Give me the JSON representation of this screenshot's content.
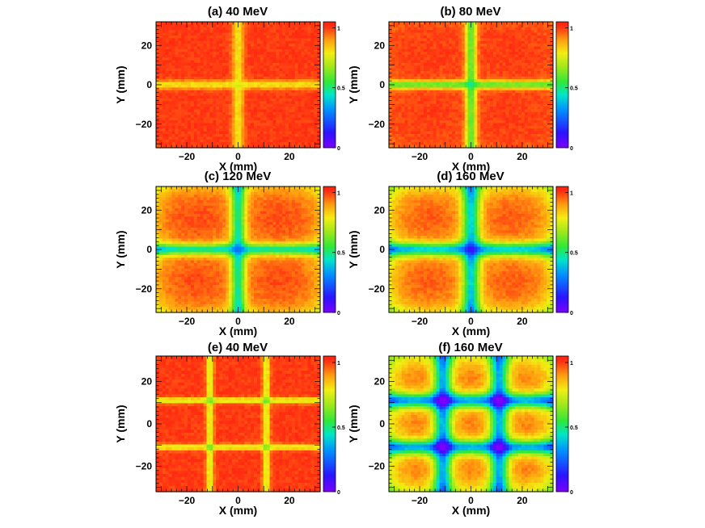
{
  "figure": {
    "colorbar": {
      "min": 0,
      "max": 1.05,
      "tick_labels": [
        "0",
        "0.5",
        "1"
      ],
      "tick_values": [
        0,
        0.5,
        1
      ],
      "palette": "rainbow (purple-blue-cyan-green-yellow-orange-red)"
    }
  },
  "chart_data": [
    {
      "type": "heatmap",
      "title": "(a) 40 MeV",
      "xlabel": "X (mm)",
      "ylabel": "Y (mm)",
      "xlim": [
        -32,
        32
      ],
      "ylim": [
        -32,
        32
      ],
      "xticks": [
        "−20",
        "0",
        "20"
      ],
      "yticks": [
        "−20",
        "0",
        "20"
      ],
      "xtick_values": [
        -20,
        0,
        20
      ],
      "ytick_values": [
        -20,
        0,
        20
      ],
      "zlim": [
        0,
        1.05
      ],
      "gap_positions_mm": [
        0
      ],
      "gap_width_mm": 2.2,
      "gap_min_value": 0.8,
      "center_value": 0.75,
      "block_value": 1.0,
      "edge_falloff": 0.0
    },
    {
      "type": "heatmap",
      "title": "(b) 80 MeV",
      "xlabel": "X (mm)",
      "ylabel": "Y (mm)",
      "xlim": [
        -32,
        32
      ],
      "ylim": [
        -32,
        32
      ],
      "xticks": [
        "−20",
        "0",
        "20"
      ],
      "yticks": [
        "−20",
        "0",
        "20"
      ],
      "xtick_values": [
        -20,
        0,
        20
      ],
      "ytick_values": [
        -20,
        0,
        20
      ],
      "zlim": [
        0,
        1.05
      ],
      "gap_positions_mm": [
        0
      ],
      "gap_width_mm": 2.0,
      "gap_min_value": 0.62,
      "center_value": 0.52,
      "block_value": 1.0,
      "edge_falloff": 0.05
    },
    {
      "type": "heatmap",
      "title": "(c) 120 MeV",
      "xlabel": "X (mm)",
      "ylabel": "Y (mm)",
      "xlim": [
        -32,
        32
      ],
      "ylim": [
        -32,
        32
      ],
      "xticks": [
        "−20",
        "0",
        "20"
      ],
      "yticks": [
        "−20",
        "0",
        "20"
      ],
      "xtick_values": [
        -20,
        0,
        20
      ],
      "ytick_values": [
        -20,
        0,
        20
      ],
      "zlim": [
        0,
        1.05
      ],
      "gap_positions_mm": [
        0
      ],
      "gap_width_mm": 2.8,
      "gap_min_value": 0.6,
      "center_value": 0.48,
      "block_value": 0.99,
      "edge_falloff": 0.22
    },
    {
      "type": "heatmap",
      "title": "(d) 160 MeV",
      "xlabel": "X (mm)",
      "ylabel": "Y (mm)",
      "xlim": [
        -32,
        32
      ],
      "ylim": [
        -32,
        32
      ],
      "xticks": [
        "−20",
        "0",
        "20"
      ],
      "yticks": [
        "−20",
        "0",
        "20"
      ],
      "xtick_values": [
        -20,
        0,
        20
      ],
      "ytick_values": [
        -20,
        0,
        20
      ],
      "zlim": [
        0,
        1.05
      ],
      "gap_positions_mm": [
        0
      ],
      "gap_width_mm": 3.4,
      "gap_min_value": 0.58,
      "center_value": 0.42,
      "block_value": 0.98,
      "edge_falloff": 0.3
    },
    {
      "type": "heatmap",
      "title": "(e) 40 MeV",
      "xlabel": "X (mm)",
      "ylabel": "Y (mm)",
      "xlim": [
        -32,
        32
      ],
      "ylim": [
        -32,
        32
      ],
      "xticks": [
        "−20",
        "0",
        "20"
      ],
      "yticks": [
        "−20",
        "0",
        "20"
      ],
      "xtick_values": [
        -20,
        0,
        20
      ],
      "ytick_values": [
        -20,
        0,
        20
      ],
      "zlim": [
        0,
        1.05
      ],
      "gap_positions_mm": [
        -11,
        11
      ],
      "gap_width_mm": 1.4,
      "gap_min_value": 0.75,
      "center_value": 0.58,
      "block_value": 1.0,
      "edge_falloff": 0.0
    },
    {
      "type": "heatmap",
      "title": "(f) 160 MeV",
      "xlabel": "X (mm)",
      "ylabel": "Y (mm)",
      "xlim": [
        -32,
        32
      ],
      "ylim": [
        -32,
        32
      ],
      "xticks": [
        "−20",
        "0",
        "20"
      ],
      "yticks": [
        "−20",
        "0",
        "20"
      ],
      "xtick_values": [
        -20,
        0,
        20
      ],
      "ytick_values": [
        -20,
        0,
        20
      ],
      "zlim": [
        0,
        1.05
      ],
      "gap_positions_mm": [
        -11,
        11
      ],
      "gap_width_mm": 3.4,
      "gap_min_value": 0.56,
      "center_value": 0.26,
      "block_value": 0.97,
      "edge_falloff": 0.32
    }
  ]
}
